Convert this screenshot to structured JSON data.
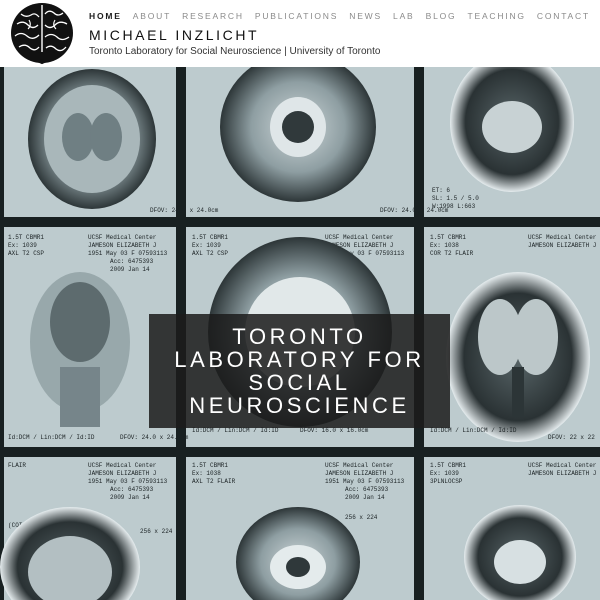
{
  "nav": {
    "items": [
      {
        "label": "HOME",
        "active": true
      },
      {
        "label": "ABOUT",
        "active": false
      },
      {
        "label": "RESEARCH",
        "active": false
      },
      {
        "label": "PUBLICATIONS",
        "active": false
      },
      {
        "label": "NEWS",
        "active": false
      },
      {
        "label": "LAB",
        "active": false
      },
      {
        "label": "BLOG",
        "active": false
      },
      {
        "label": "TEACHING",
        "active": false
      },
      {
        "label": "CONTACT",
        "active": false
      }
    ]
  },
  "site": {
    "title": "MICHAEL INZLICHT",
    "tagline": "Toronto Laboratory for Social Neuroscience | University of Toronto",
    "logo_icon": "brain-icon"
  },
  "hero": {
    "overlay_lines": [
      "TORONTO",
      "LABORATORY FOR",
      "SOCIAL",
      "NEUROSCIENCE"
    ],
    "background": "mri-scan-film",
    "scan_labels": {
      "hospital": "UCSF Medical Center",
      "patient": "JAMESON ELIZABETH J",
      "dob": "1951 May 03 F 07593113",
      "acc": "Acc: 6475393",
      "date": "2009 Jan 14",
      "scanner": "1.5T CBMR1",
      "ex": "Ex: 1039",
      "sequence": "AXL T2 FLAIR",
      "coronal": "COR T2 FLAIR",
      "matrix": "256 x 224",
      "cor_left": "COR",
      "dfov": "DFOV: 16.0 x 16.0cm",
      "id_dcm": "Id:DCM / Lin:DCM / Id:ID"
    }
  },
  "colors": {
    "film": "#b9c8cb",
    "divider": "#182021",
    "overlay": "#1c1c1c",
    "nav_active": "#1c1c1c",
    "nav_inactive": "#8a8a8a"
  }
}
